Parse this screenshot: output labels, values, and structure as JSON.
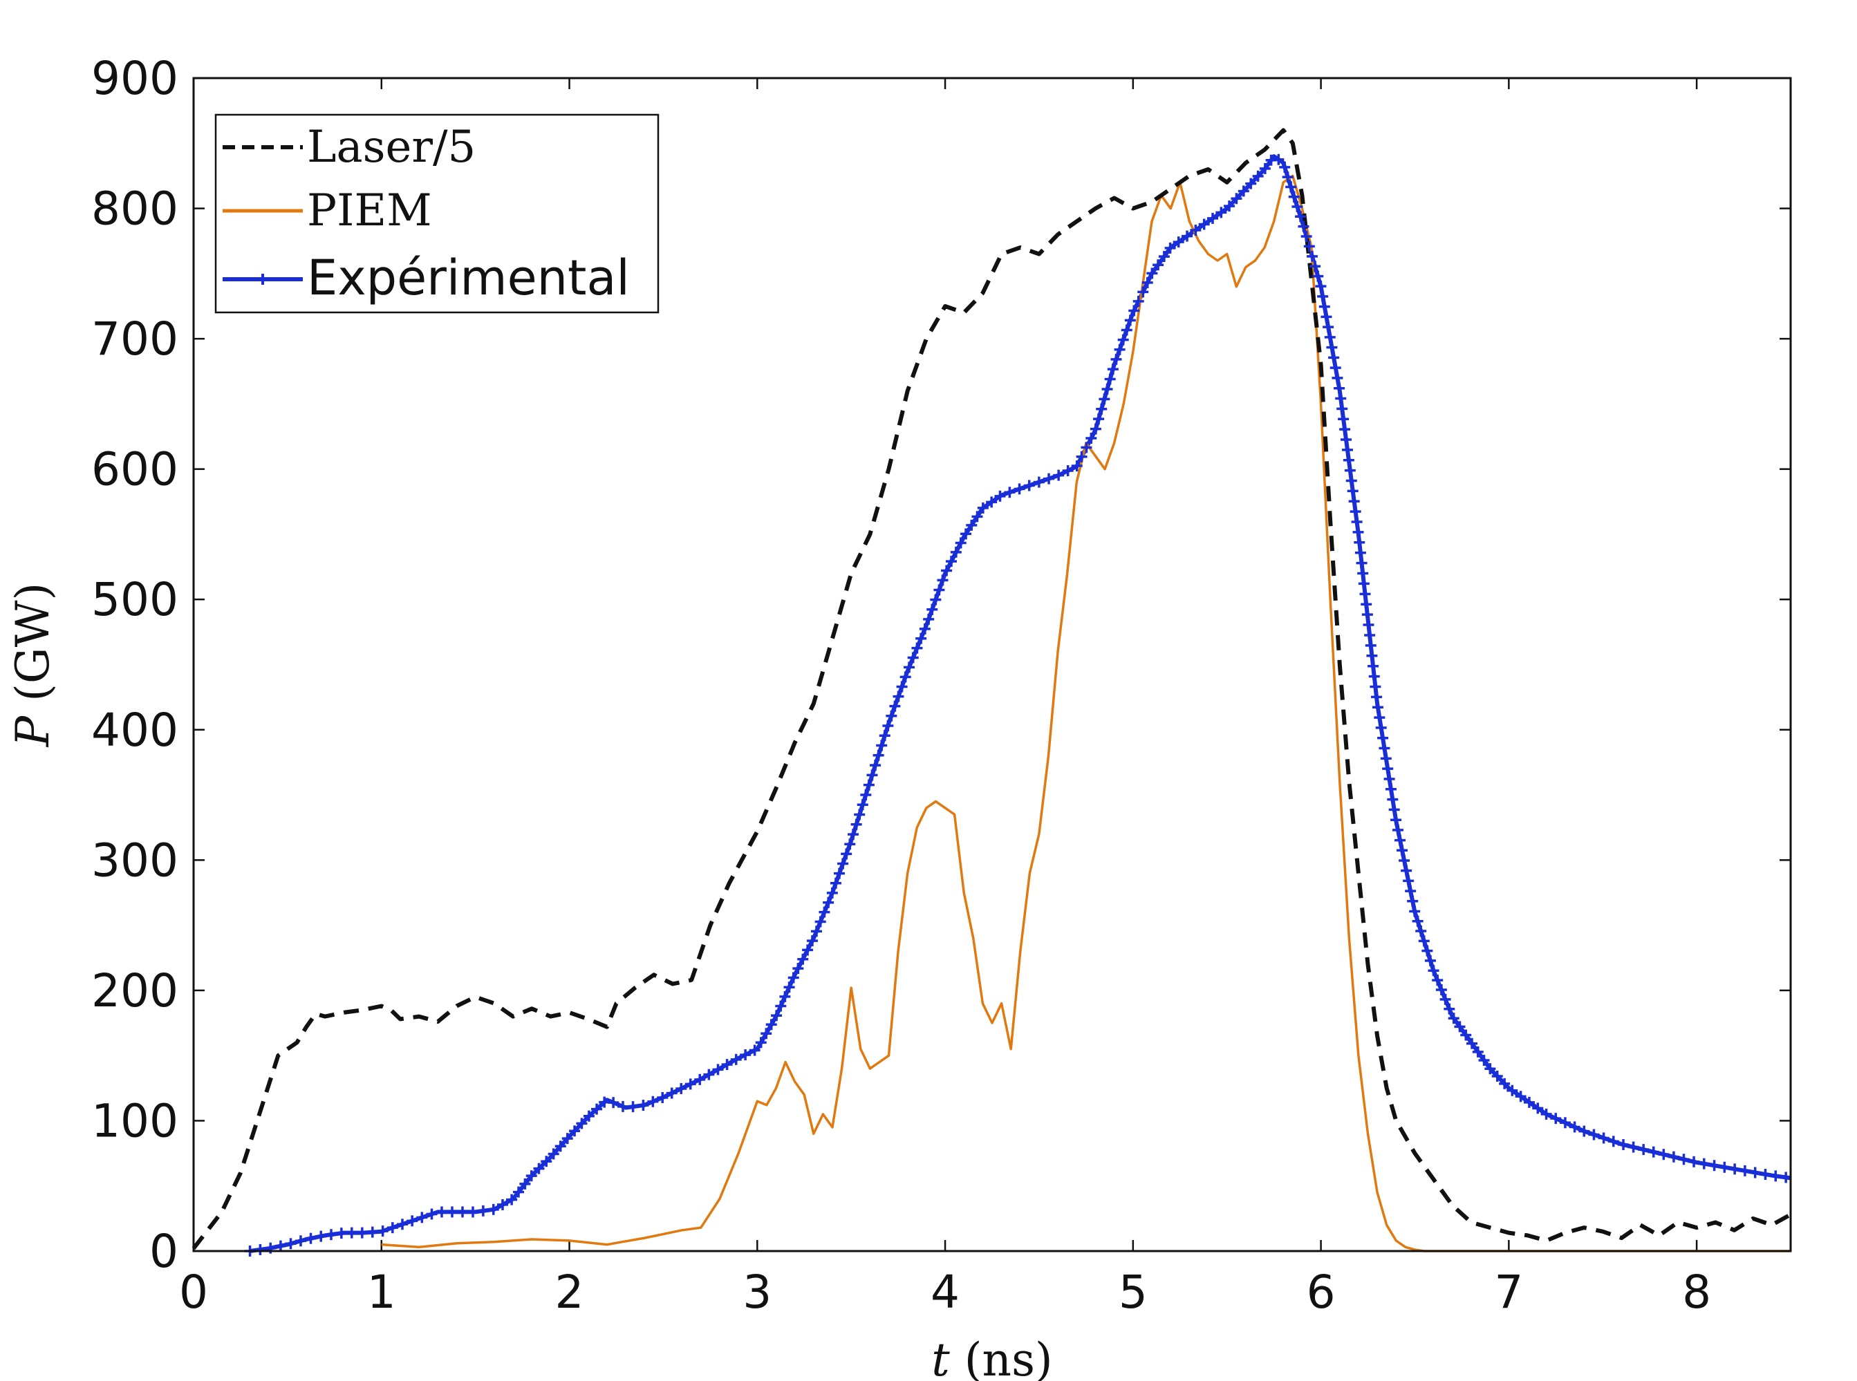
{
  "chart_data": {
    "type": "line",
    "title": "",
    "xlabel": {
      "var": "t",
      "unit": " (ns)"
    },
    "ylabel": {
      "var": "P",
      "unit": " (GW)"
    },
    "xlim": [
      0,
      8.5
    ],
    "ylim": [
      0,
      900
    ],
    "xticks": [
      "0",
      "1",
      "2",
      "3",
      "4",
      "5",
      "6",
      "7",
      "8"
    ],
    "yticks": [
      "0",
      "100",
      "200",
      "300",
      "400",
      "500",
      "600",
      "700",
      "800",
      "900"
    ],
    "grid": false,
    "legend_position": "top-left",
    "colors": {
      "laser": "#111111",
      "piem": "#e07a10",
      "exp": "#1a2ed8"
    },
    "series": [
      {
        "name": "Laser/5",
        "style": "dashed",
        "x": [
          0.0,
          0.15,
          0.25,
          0.35,
          0.45,
          0.55,
          0.6,
          0.65,
          0.7,
          0.8,
          0.9,
          1.0,
          1.05,
          1.1,
          1.2,
          1.3,
          1.4,
          1.5,
          1.6,
          1.7,
          1.8,
          1.9,
          2.0,
          2.1,
          2.2,
          2.25,
          2.35,
          2.45,
          2.55,
          2.65,
          2.75,
          2.85,
          3.0,
          3.1,
          3.2,
          3.3,
          3.4,
          3.5,
          3.6,
          3.7,
          3.8,
          3.9,
          4.0,
          4.1,
          4.2,
          4.3,
          4.4,
          4.5,
          4.6,
          4.7,
          4.8,
          4.9,
          5.0,
          5.1,
          5.2,
          5.3,
          5.4,
          5.5,
          5.6,
          5.7,
          5.8,
          5.85,
          5.9,
          6.0,
          6.05,
          6.1,
          6.15,
          6.2,
          6.25,
          6.3,
          6.35,
          6.4,
          6.5,
          6.6,
          6.7,
          6.8,
          6.9,
          7.0,
          7.1,
          7.2,
          7.3,
          7.4,
          7.5,
          7.6,
          7.7,
          7.8,
          7.9,
          8.0,
          8.1,
          8.2,
          8.3,
          8.4,
          8.5
        ],
        "y": [
          2,
          30,
          60,
          105,
          150,
          160,
          172,
          182,
          180,
          183,
          185,
          188,
          185,
          178,
          180,
          176,
          188,
          195,
          190,
          180,
          186,
          180,
          183,
          178,
          172,
          190,
          202,
          212,
          205,
          208,
          250,
          282,
          322,
          355,
          390,
          420,
          470,
          520,
          550,
          600,
          660,
          700,
          725,
          720,
          735,
          765,
          770,
          765,
          780,
          790,
          800,
          808,
          800,
          805,
          815,
          825,
          830,
          820,
          835,
          845,
          860,
          850,
          810,
          680,
          560,
          450,
          360,
          290,
          220,
          165,
          125,
          100,
          75,
          55,
          35,
          22,
          18,
          14,
          12,
          8,
          14,
          18,
          15,
          10,
          20,
          12,
          22,
          18,
          22,
          16,
          25,
          20,
          28
        ]
      },
      {
        "name": "PIEM",
        "style": "solid",
        "x": [
          1.0,
          1.2,
          1.4,
          1.6,
          1.8,
          2.0,
          2.2,
          2.4,
          2.6,
          2.7,
          2.8,
          2.9,
          3.0,
          3.05,
          3.1,
          3.15,
          3.2,
          3.25,
          3.3,
          3.35,
          3.4,
          3.45,
          3.5,
          3.55,
          3.6,
          3.7,
          3.75,
          3.8,
          3.85,
          3.9,
          3.95,
          4.0,
          4.05,
          4.1,
          4.15,
          4.2,
          4.25,
          4.3,
          4.35,
          4.4,
          4.45,
          4.5,
          4.55,
          4.6,
          4.65,
          4.7,
          4.75,
          4.8,
          4.85,
          4.9,
          4.95,
          5.0,
          5.05,
          5.1,
          5.15,
          5.2,
          5.25,
          5.3,
          5.35,
          5.4,
          5.45,
          5.5,
          5.55,
          5.6,
          5.65,
          5.7,
          5.75,
          5.8,
          5.85,
          5.9,
          5.95,
          6.0,
          6.05,
          6.1,
          6.15,
          6.2,
          6.25,
          6.3,
          6.35,
          6.4,
          6.45,
          6.5,
          6.55,
          6.6,
          7.0,
          7.5,
          8.0,
          8.5
        ],
        "y": [
          5,
          3,
          6,
          7,
          9,
          8,
          5,
          10,
          16,
          18,
          40,
          75,
          115,
          112,
          125,
          145,
          130,
          120,
          90,
          105,
          95,
          140,
          202,
          155,
          140,
          150,
          230,
          290,
          325,
          340,
          345,
          340,
          335,
          275,
          240,
          190,
          175,
          190,
          155,
          230,
          290,
          320,
          380,
          460,
          520,
          590,
          620,
          610,
          600,
          620,
          650,
          690,
          740,
          790,
          810,
          800,
          820,
          790,
          775,
          765,
          760,
          765,
          740,
          755,
          760,
          770,
          790,
          820,
          825,
          800,
          770,
          650,
          500,
          360,
          240,
          150,
          90,
          45,
          20,
          8,
          3,
          1,
          0,
          0,
          0,
          0,
          0,
          0
        ]
      },
      {
        "name": "Expérimental",
        "style": "solid-plus",
        "x": [
          0.3,
          0.4,
          0.5,
          0.6,
          0.7,
          0.8,
          0.9,
          1.0,
          1.1,
          1.2,
          1.3,
          1.4,
          1.5,
          1.6,
          1.7,
          1.8,
          1.9,
          2.0,
          2.1,
          2.2,
          2.3,
          2.4,
          2.5,
          2.6,
          2.7,
          2.8,
          2.9,
          3.0,
          3.1,
          3.2,
          3.3,
          3.4,
          3.5,
          3.6,
          3.7,
          3.8,
          3.9,
          4.0,
          4.1,
          4.2,
          4.3,
          4.4,
          4.5,
          4.6,
          4.7,
          4.8,
          4.9,
          5.0,
          5.1,
          5.2,
          5.3,
          5.4,
          5.5,
          5.6,
          5.7,
          5.75,
          5.8,
          5.85,
          5.9,
          6.0,
          6.1,
          6.2,
          6.3,
          6.4,
          6.5,
          6.6,
          6.7,
          6.8,
          6.9,
          7.0,
          7.2,
          7.4,
          7.6,
          7.8,
          8.0,
          8.2,
          8.4,
          8.5
        ],
        "y": [
          0,
          2,
          5,
          9,
          12,
          14,
          14,
          15,
          20,
          25,
          30,
          30,
          30,
          32,
          40,
          58,
          72,
          88,
          103,
          116,
          110,
          112,
          118,
          125,
          132,
          140,
          148,
          155,
          180,
          212,
          240,
          275,
          315,
          360,
          405,
          445,
          480,
          520,
          548,
          570,
          580,
          585,
          590,
          595,
          602,
          630,
          680,
          720,
          750,
          770,
          780,
          790,
          800,
          815,
          830,
          840,
          835,
          812,
          790,
          740,
          660,
          550,
          420,
          330,
          260,
          215,
          180,
          160,
          140,
          125,
          105,
          92,
          82,
          75,
          68,
          63,
          58,
          56
        ]
      }
    ]
  }
}
